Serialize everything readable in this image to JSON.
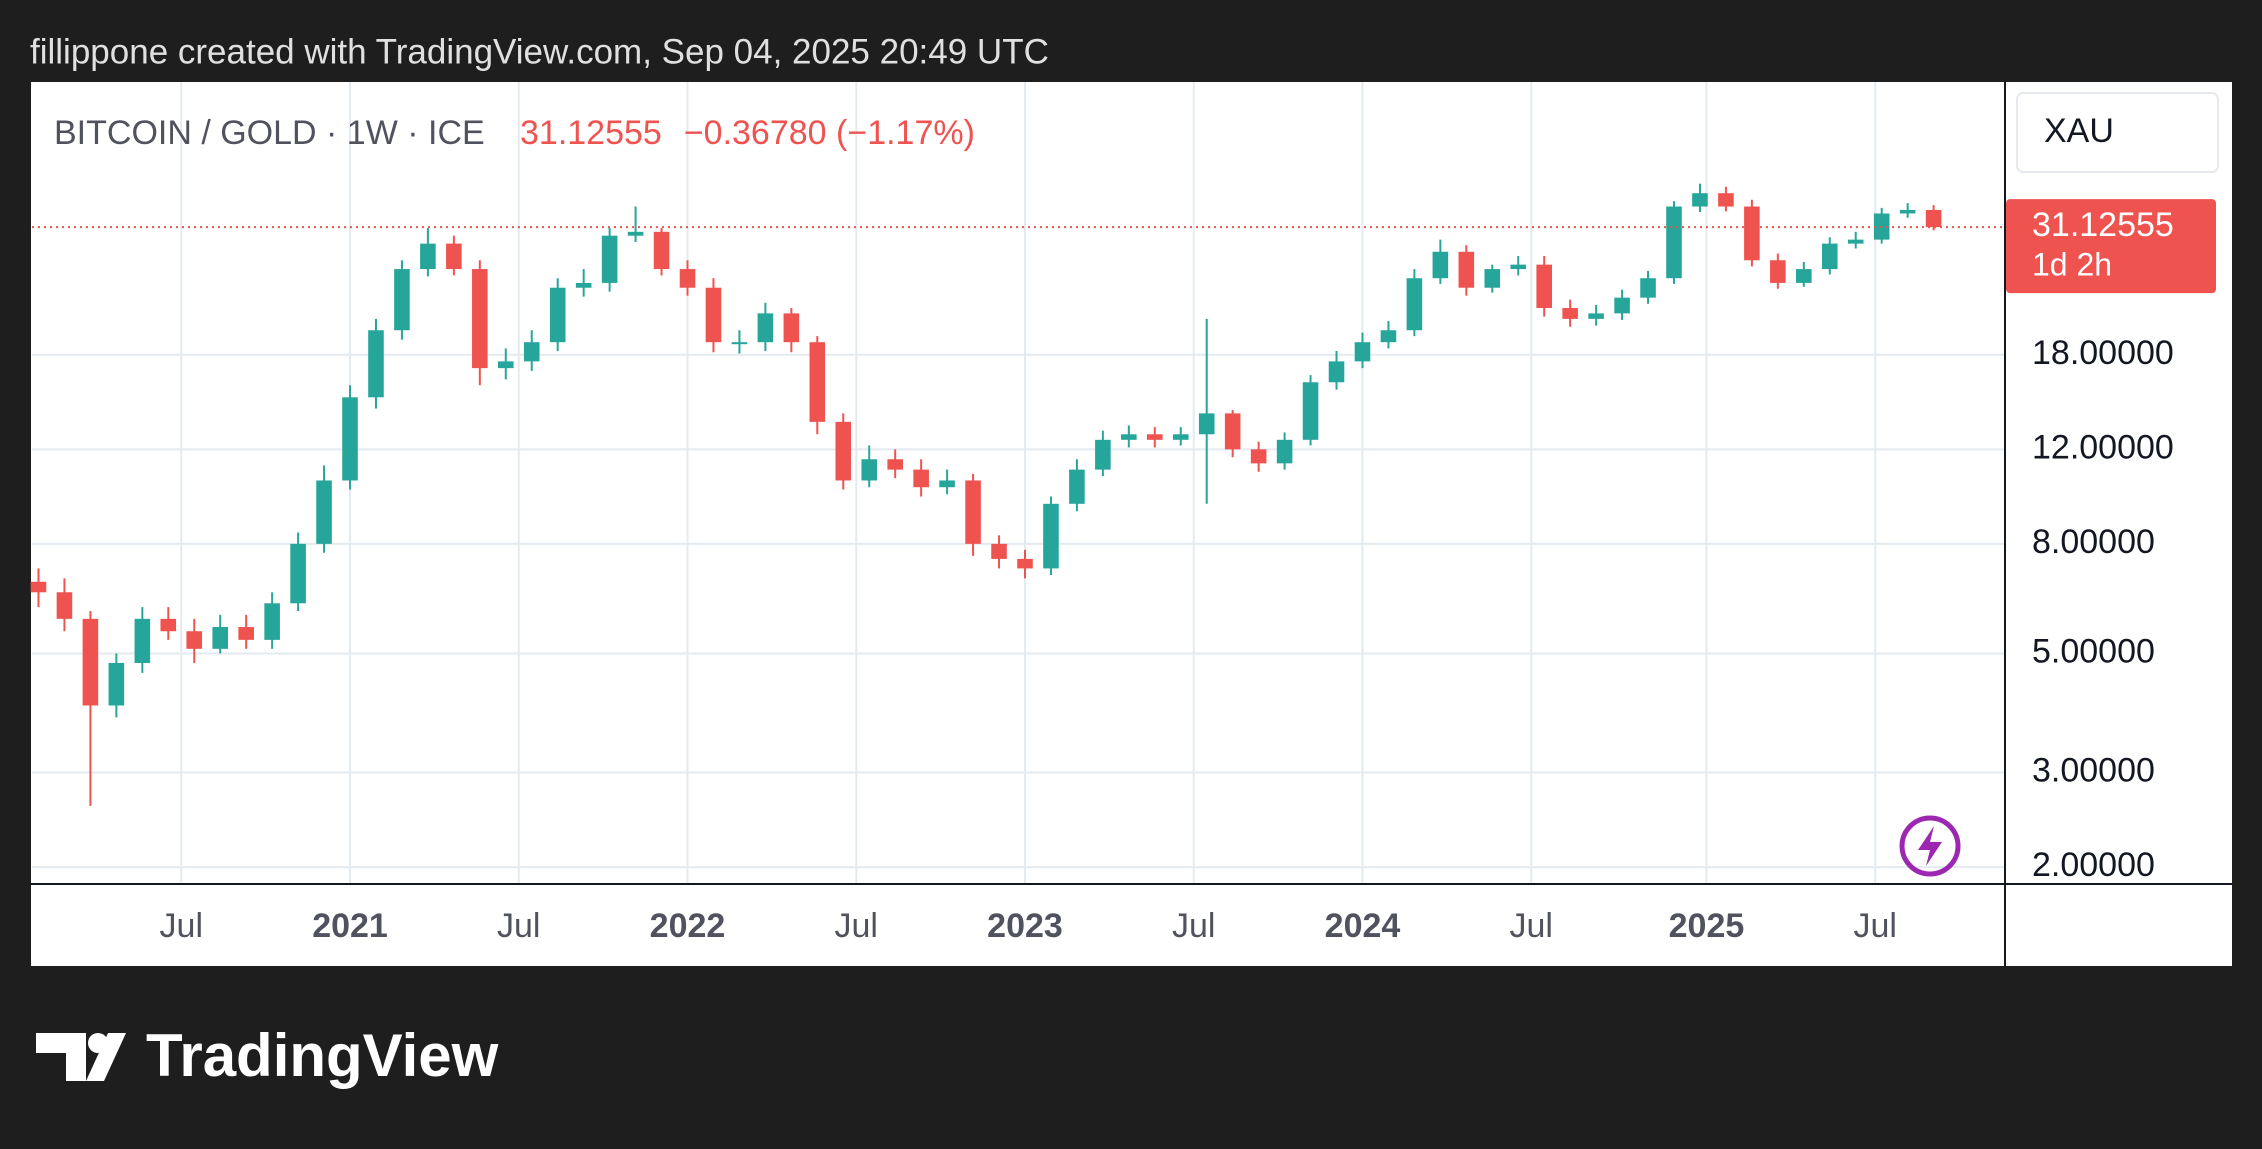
{
  "caption": "fillippone created with TradingView.com, Sep 04, 2025 20:49 UTC",
  "brand": "TradingView",
  "chart_data": {
    "type": "candlestick",
    "title": "BITCOIN / GOLD · 1W · ICE",
    "last_price": 31.12555,
    "change": "−0.36780 (−1.17%)",
    "currency": "XAU",
    "countdown": "1d 2h",
    "log_scale": true,
    "grid": true,
    "up_color": "#26a69a",
    "down_color": "#ef5350",
    "xlim": [
      3,
      307
    ],
    "xticks": [
      {
        "value": 26,
        "label": "Jul"
      },
      {
        "value": 52,
        "label": "2021"
      },
      {
        "value": 78,
        "label": "Jul"
      },
      {
        "value": 104,
        "label": "2022"
      },
      {
        "value": 130,
        "label": "Jul"
      },
      {
        "value": 156,
        "label": "2023"
      },
      {
        "value": 182,
        "label": "Jul"
      },
      {
        "value": 208,
        "label": "2024"
      },
      {
        "value": 234,
        "label": "Jul"
      },
      {
        "value": 261,
        "label": "2025"
      },
      {
        "value": 287,
        "label": "Jul"
      }
    ],
    "ylim": [
      1.86,
      58
    ],
    "yticks": [
      {
        "value": 2,
        "label": "2.00000"
      },
      {
        "value": 3,
        "label": "3.00000"
      },
      {
        "value": 5,
        "label": "5.00000"
      },
      {
        "value": 8,
        "label": "8.00000"
      },
      {
        "value": 12,
        "label": "12.00000"
      },
      {
        "value": 18,
        "label": "18.00000"
      }
    ],
    "x": [
      4,
      8,
      12,
      16,
      20,
      24,
      28,
      32,
      36,
      40,
      44,
      48,
      52,
      56,
      60,
      64,
      68,
      72,
      76,
      80,
      84,
      88,
      92,
      96,
      100,
      104,
      108,
      112,
      116,
      120,
      124,
      128,
      132,
      136,
      140,
      144,
      148,
      152,
      156,
      160,
      164,
      168,
      172,
      176,
      180,
      184,
      188,
      192,
      196,
      200,
      204,
      208,
      212,
      216,
      220,
      224,
      228,
      232,
      236,
      240,
      244,
      248,
      252,
      256,
      260,
      264,
      268,
      272,
      276,
      280,
      284,
      288,
      292,
      296
    ],
    "open": [
      6.8,
      6.5,
      5.8,
      4.0,
      4.8,
      5.8,
      5.5,
      5.1,
      5.6,
      5.3,
      6.2,
      8.0,
      10.5,
      15,
      20,
      26,
      29,
      26,
      17,
      17.5,
      19,
      24,
      24.5,
      30,
      30.5,
      26,
      24,
      19,
      19,
      21.5,
      19,
      13.5,
      10.5,
      11.5,
      11,
      10.2,
      10.5,
      8,
      7.5,
      7.2,
      9.5,
      11,
      12.5,
      12.8,
      12.5,
      12.8,
      14,
      12,
      11.3,
      12.5,
      16,
      17.5,
      19,
      20,
      25,
      28,
      24,
      26,
      26.5,
      22,
      21,
      21.5,
      23,
      25,
      34,
      36,
      34,
      27,
      24.5,
      26,
      29,
      29.5,
      33,
      33.5
    ],
    "high": [
      7.2,
      6.9,
      6.0,
      5.0,
      6.1,
      6.1,
      5.8,
      5.9,
      5.9,
      6.5,
      8.4,
      11.2,
      15.8,
      21,
      27,
      31,
      30,
      27,
      18.5,
      20,
      25,
      26,
      31,
      34,
      31,
      27,
      25,
      20,
      22.5,
      22,
      19.5,
      14,
      12.2,
      12,
      11.5,
      11,
      10.8,
      8.3,
      7.8,
      9.8,
      11.5,
      13,
      13.3,
      13.2,
      13.2,
      21,
      14.2,
      12.4,
      12.9,
      16.5,
      18.3,
      19.8,
      20.8,
      26,
      29.5,
      28.8,
      26.5,
      27.5,
      27.5,
      22.8,
      22.3,
      23.8,
      25.8,
      34.8,
      37.5,
      37,
      35,
      27.8,
      26.8,
      29.8,
      30.5,
      33.8,
      34.5,
      34.2
    ],
    "low": [
      6.1,
      5.5,
      2.6,
      3.8,
      4.6,
      5.3,
      4.8,
      5.0,
      5.1,
      5.1,
      6.0,
      7.7,
      10.1,
      14.3,
      19.2,
      25.2,
      25.3,
      15.8,
      16.2,
      16.8,
      18.3,
      23.1,
      23.6,
      29.2,
      25.3,
      23.2,
      18.2,
      18.1,
      18.3,
      18.2,
      12.8,
      10.1,
      10.2,
      10.6,
      9.8,
      9.9,
      7.6,
      7.2,
      6.9,
      7.0,
      9.2,
      10.7,
      12.1,
      12.1,
      12.2,
      9.5,
      11.6,
      10.9,
      11.0,
      12.2,
      15.5,
      17.0,
      18.5,
      19.5,
      24.4,
      23.2,
      23.5,
      25.3,
      21.2,
      20.3,
      20.4,
      20.9,
      22.4,
      24.4,
      33.2,
      33.3,
      26.3,
      23.9,
      24.1,
      25.4,
      28.4,
      29.0,
      32.4,
      30.7
    ],
    "close": [
      6.5,
      5.8,
      4.0,
      4.8,
      5.8,
      5.5,
      5.1,
      5.6,
      5.3,
      6.2,
      8.0,
      10.5,
      15,
      20,
      26,
      29,
      26,
      17,
      17.5,
      19,
      24,
      24.5,
      30,
      30.5,
      26,
      24,
      19,
      19,
      21.5,
      19,
      13.5,
      10.5,
      11.5,
      11,
      10.2,
      10.5,
      8,
      7.5,
      7.2,
      9.5,
      11,
      12.5,
      12.8,
      12.5,
      12.8,
      14,
      12,
      11.3,
      12.5,
      16,
      17.5,
      19,
      20,
      25,
      28,
      24,
      26,
      26.5,
      22,
      21,
      21.5,
      23,
      25,
      34,
      36,
      34,
      27,
      24.5,
      26,
      29,
      29.5,
      33,
      33.5,
      31.13
    ]
  }
}
